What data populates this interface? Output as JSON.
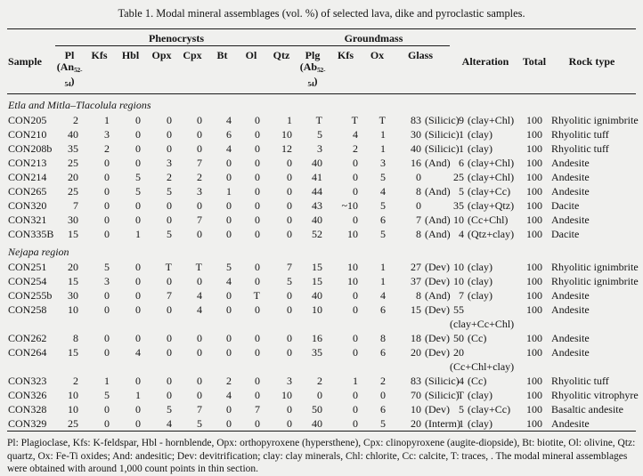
{
  "title": "Table 1. Modal mineral assemblages (vol. %) of selected lava, dike and pyroclastic samples.",
  "header": {
    "sample": "Sample",
    "phenocrysts_group": "Phenocrysts",
    "groundmass_group": "Groundmass",
    "pl_main": "Pl",
    "pl_pre": "(An",
    "pl_sub": "52-54",
    "pl_post": ")",
    "phen_cols": [
      "Kfs",
      "Hbl",
      "Opx",
      "Cpx",
      "Bt",
      "Ol",
      "Qtz"
    ],
    "plg_main": "Plg",
    "plg_pre": "(Ab",
    "plg_sub": "52-54",
    "plg_post": ")",
    "gm_cols": [
      "Kfs",
      "Ox",
      "Glass"
    ],
    "alteration": "Alteration",
    "total": "Total",
    "rock_type": "Rock type"
  },
  "sections": [
    {
      "label": "Etla and Mitla–Tlacolula regions",
      "rows": [
        {
          "sample": "CON205",
          "phen": [
            "2",
            "1",
            "0",
            "0",
            "0",
            "4",
            "0",
            "1"
          ],
          "gm": [
            "T",
            "T",
            "T"
          ],
          "glass": "83 (Silicic)",
          "alteration": "9 (clay+Chl)",
          "total": "100",
          "rock": "Rhyolitic ignimbrite"
        },
        {
          "sample": "CON210",
          "phen": [
            "40",
            "3",
            "0",
            "0",
            "0",
            "6",
            "0",
            "10"
          ],
          "gm": [
            "5",
            "4",
            "1"
          ],
          "glass": "30 (Silicic)",
          "alteration": "1 (clay)",
          "total": "100",
          "rock": "Rhyolitic tuff"
        },
        {
          "sample": "CON208b",
          "phen": [
            "35",
            "2",
            "0",
            "0",
            "0",
            "4",
            "0",
            "12"
          ],
          "gm": [
            "3",
            "2",
            "1"
          ],
          "glass": "40 (Silicic)",
          "alteration": "1 (clay)",
          "total": "100",
          "rock": "Rhyolitic tuff"
        },
        {
          "sample": "CON213",
          "phen": [
            "25",
            "0",
            "0",
            "3",
            "7",
            "0",
            "0",
            "0"
          ],
          "gm": [
            "40",
            "0",
            "3"
          ],
          "glass": "16 (And)",
          "alteration": "6 (clay+Chl)",
          "total": "100",
          "rock": "Andesite"
        },
        {
          "sample": "CON214",
          "phen": [
            "20",
            "0",
            "5",
            "2",
            "2",
            "0",
            "0",
            "0"
          ],
          "gm": [
            "41",
            "0",
            "5"
          ],
          "glass": "0",
          "alteration": "25 (clay+Chl)",
          "total": "100",
          "rock": "Andesite"
        },
        {
          "sample": "CON265",
          "phen": [
            "25",
            "0",
            "5",
            "5",
            "3",
            "1",
            "0",
            "0"
          ],
          "gm": [
            "44",
            "0",
            "4"
          ],
          "glass": "8 (And)",
          "alteration": "5 (clay+Cc)",
          "total": "100",
          "rock": "Andesite"
        },
        {
          "sample": "CON320",
          "phen": [
            "7",
            "0",
            "0",
            "0",
            "0",
            "0",
            "0",
            "0"
          ],
          "gm": [
            "43",
            "~10",
            "5"
          ],
          "glass": "0",
          "alteration": "35 (clay+Qtz)",
          "total": "100",
          "rock": "Dacite"
        },
        {
          "sample": "CON321",
          "phen": [
            "30",
            "0",
            "0",
            "0",
            "7",
            "0",
            "0",
            "0"
          ],
          "gm": [
            "40",
            "0",
            "6"
          ],
          "glass": "7 (And)",
          "alteration": "10 (Cc+Chl)",
          "total": "100",
          "rock": "Andesite"
        },
        {
          "sample": "CON335B",
          "phen": [
            "15",
            "0",
            "1",
            "5",
            "0",
            "0",
            "0",
            "0"
          ],
          "gm": [
            "52",
            "10",
            "5"
          ],
          "glass": "8 (And)",
          "alteration": "4 (Qtz+clay)",
          "total": "100",
          "rock": "Dacite"
        }
      ]
    },
    {
      "label": "Nejapa region",
      "rows": [
        {
          "sample": "CON251",
          "phen": [
            "20",
            "5",
            "0",
            "T",
            "T",
            "5",
            "0",
            "7"
          ],
          "gm": [
            "15",
            "10",
            "1"
          ],
          "glass": "27 (Dev)",
          "alteration": "10 (clay)",
          "total": "100",
          "rock": "Rhyolitic ignimbrite"
        },
        {
          "sample": "CON254",
          "phen": [
            "15",
            "3",
            "0",
            "0",
            "0",
            "4",
            "0",
            "5"
          ],
          "gm": [
            "15",
            "10",
            "1"
          ],
          "glass": "37 (Dev)",
          "alteration": "10 (clay)",
          "total": "100",
          "rock": "Rhyolitic ignimbrite"
        },
        {
          "sample": "CON255b",
          "phen": [
            "30",
            "0",
            "0",
            "7",
            "4",
            "0",
            "T",
            "0"
          ],
          "gm": [
            "40",
            "0",
            "4"
          ],
          "glass": "8 (And)",
          "alteration": "7 (clay)",
          "total": "100",
          "rock": "Andesite"
        },
        {
          "sample": "CON258",
          "phen": [
            "10",
            "0",
            "0",
            "0",
            "4",
            "0",
            "0",
            "0"
          ],
          "gm": [
            "10",
            "0",
            "6"
          ],
          "glass": "15 (Dev)",
          "alteration": "55\n(clay+Cc+Chl)",
          "total": "100",
          "rock": "Andesite"
        },
        {
          "sample": "CON262",
          "phen": [
            "8",
            "0",
            "0",
            "0",
            "0",
            "0",
            "0",
            "0"
          ],
          "gm": [
            "16",
            "0",
            "8"
          ],
          "glass": "18 (Dev)",
          "alteration": "50 (Cc)",
          "total": "100",
          "rock": "Andesite"
        },
        {
          "sample": "CON264",
          "phen": [
            "15",
            "0",
            "4",
            "0",
            "0",
            "0",
            "0",
            "0"
          ],
          "gm": [
            "35",
            "0",
            "6"
          ],
          "glass": "20 (Dev)",
          "alteration": "20\n(Cc+Chl+clay)",
          "total": "100",
          "rock": "Andesite"
        },
        {
          "sample": "CON323",
          "phen": [
            "2",
            "1",
            "0",
            "0",
            "0",
            "2",
            "0",
            "3"
          ],
          "gm": [
            "2",
            "1",
            "2"
          ],
          "glass": "83 (Silicic)",
          "alteration": "4 (Cc)",
          "total": "100",
          "rock": "Rhyolitic tuff"
        },
        {
          "sample": "CON326",
          "phen": [
            "10",
            "5",
            "1",
            "0",
            "0",
            "4",
            "0",
            "10"
          ],
          "gm": [
            "0",
            "0",
            "0"
          ],
          "glass": "70 (Silicic)",
          "alteration": "T (clay)",
          "total": "100",
          "rock": "Rhyolitic vitrophyre"
        },
        {
          "sample": "CON328",
          "phen": [
            "10",
            "0",
            "0",
            "5",
            "7",
            "0",
            "7",
            "0"
          ],
          "gm": [
            "50",
            "0",
            "6"
          ],
          "glass": "10 (Dev)",
          "alteration": "5 (clay+Cc)",
          "total": "100",
          "rock": "Basaltic andesite"
        },
        {
          "sample": "CON329",
          "phen": [
            "25",
            "0",
            "0",
            "4",
            "5",
            "0",
            "0",
            "0"
          ],
          "gm": [
            "40",
            "0",
            "5"
          ],
          "glass": "20 (Interm)",
          "alteration": "1 (clay)",
          "total": "100",
          "rock": "Andesite"
        }
      ]
    }
  ],
  "footnote": "Pl: Plagioclase, Kfs: K-feldspar, Hbl - hornblende, Opx: orthopyroxene (hypersthene), Cpx: clinopyroxene (augite-diopside), Bt: biotite, Ol: olivine, Qtz: quartz, Ox: Fe-Ti oxides; And: andesitic; Dev: devitrification; clay: clay minerals, Chl: chlorite, Cc: calcite, T: traces, . The modal mineral assemblages were obtained with around 1,000 count points in thin section."
}
